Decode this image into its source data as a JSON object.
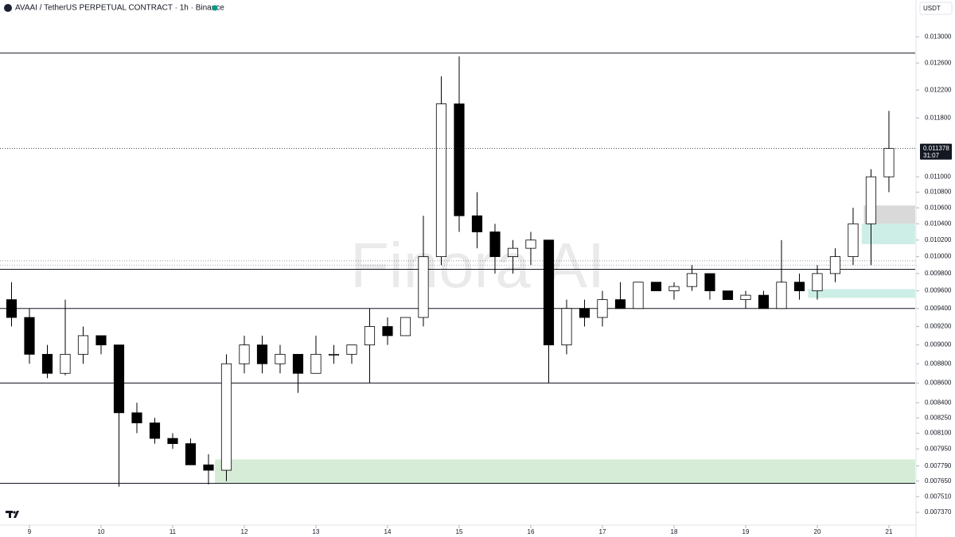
{
  "chart_data": {
    "type": "candlestick",
    "title": "AVAAI / TetherUS PERPETUAL CONTRACT · 1h · Binance",
    "currency": "USDT",
    "watermark": "Finora AI",
    "up_color": "#ffffff",
    "down_color": "#000000",
    "border_color": "#000000",
    "log_scale": true,
    "x": [
      8.75,
      9.0,
      9.25,
      9.5,
      9.75,
      10.0,
      10.25,
      10.5,
      10.75,
      11.0,
      11.25,
      11.5,
      11.75,
      12.0,
      12.25,
      12.5,
      12.75,
      13.0,
      13.25,
      13.5,
      13.75,
      14.0,
      14.25,
      14.5,
      14.75,
      15.0,
      15.25,
      15.5,
      15.75,
      16.0,
      16.25,
      16.5,
      16.75,
      17.0,
      17.25,
      17.5,
      17.75,
      18.0,
      18.25,
      18.5,
      18.75,
      19.0,
      19.25,
      19.5,
      19.75,
      20.0,
      20.25,
      20.5,
      20.75,
      21.0
    ],
    "open": [
      0.0095,
      0.0093,
      0.0089,
      0.0087,
      0.0089,
      0.0091,
      0.009,
      0.0083,
      0.0082,
      0.00805,
      0.008,
      0.0078,
      0.00775,
      0.0088,
      0.009,
      0.0088,
      0.0089,
      0.0087,
      0.0089,
      0.0089,
      0.009,
      0.0092,
      0.0091,
      0.0093,
      0.01,
      0.012,
      0.0105,
      0.0103,
      0.01,
      0.0101,
      0.0102,
      0.009,
      0.0094,
      0.0093,
      0.0095,
      0.0094,
      0.0097,
      0.0096,
      0.00965,
      0.0098,
      0.0096,
      0.0095,
      0.00955,
      0.0094,
      0.0097,
      0.0096,
      0.0098,
      0.01,
      0.0104,
      0.011
    ],
    "high": [
      0.0097,
      0.0094,
      0.009,
      0.0095,
      0.0092,
      0.0091,
      0.009,
      0.0084,
      0.00825,
      0.0081,
      0.00805,
      0.0079,
      0.0089,
      0.0091,
      0.0091,
      0.009,
      0.0089,
      0.0091,
      0.009,
      0.009,
      0.0094,
      0.0093,
      0.0093,
      0.0105,
      0.0124,
      0.0127,
      0.0108,
      0.0104,
      0.0102,
      0.0103,
      0.0102,
      0.0095,
      0.0095,
      0.0096,
      0.0097,
      0.0097,
      0.0097,
      0.0097,
      0.0099,
      0.0098,
      0.0096,
      0.0096,
      0.0096,
      0.0102,
      0.0098,
      0.0099,
      0.0101,
      0.0106,
      0.0111,
      0.0119
    ],
    "low": [
      0.0092,
      0.0088,
      0.00865,
      0.00868,
      0.0088,
      0.0089,
      0.0076,
      0.0081,
      0.008,
      0.00795,
      0.0078,
      0.00762,
      0.00765,
      0.0087,
      0.0087,
      0.0087,
      0.0085,
      0.0087,
      0.0088,
      0.0088,
      0.0086,
      0.009,
      0.0091,
      0.0092,
      0.0099,
      0.0103,
      0.0101,
      0.0098,
      0.0098,
      0.0099,
      0.0086,
      0.0089,
      0.0092,
      0.0092,
      0.0094,
      0.0094,
      0.0096,
      0.0095,
      0.0096,
      0.0095,
      0.0095,
      0.0094,
      0.0094,
      0.0094,
      0.0095,
      0.0095,
      0.0097,
      0.0099,
      0.0099,
      0.0108
    ],
    "close": [
      0.0093,
      0.0089,
      0.0087,
      0.0089,
      0.0091,
      0.009,
      0.0083,
      0.0082,
      0.00805,
      0.008,
      0.0078,
      0.00775,
      0.0088,
      0.009,
      0.0088,
      0.0089,
      0.0087,
      0.0089,
      0.0089,
      0.009,
      0.0092,
      0.0091,
      0.0093,
      0.01,
      0.012,
      0.0105,
      0.0103,
      0.01,
      0.0101,
      0.0102,
      0.009,
      0.0094,
      0.0093,
      0.0095,
      0.0094,
      0.0097,
      0.0096,
      0.00965,
      0.0098,
      0.0096,
      0.0095,
      0.00955,
      0.0094,
      0.0097,
      0.0096,
      0.0098,
      0.01,
      0.0104,
      0.011,
      0.011378
    ],
    "xlim": [
      8.589,
      21.367
    ],
    "xticks": [
      9,
      10,
      11,
      12,
      13,
      14,
      15,
      16,
      17,
      18,
      19,
      20,
      21
    ],
    "ylim": [
      0.007259,
      0.013584
    ],
    "yticks": [
      {
        "value": 0.013,
        "label": "0.013000"
      },
      {
        "value": 0.0126,
        "label": "0.012600"
      },
      {
        "value": 0.0122,
        "label": "0.012200"
      },
      {
        "value": 0.0118,
        "label": "0.011800"
      },
      {
        "value": 0.011,
        "label": "0.011000"
      },
      {
        "value": 0.0108,
        "label": "0.010800"
      },
      {
        "value": 0.0106,
        "label": "0.010600"
      },
      {
        "value": 0.0104,
        "label": "0.010400"
      },
      {
        "value": 0.0102,
        "label": "0.010200"
      },
      {
        "value": 0.01,
        "label": "0.010000"
      },
      {
        "value": 0.0098,
        "label": "0.009800"
      },
      {
        "value": 0.0096,
        "label": "0.009600"
      },
      {
        "value": 0.0094,
        "label": "0.009400"
      },
      {
        "value": 0.0092,
        "label": "0.009200"
      },
      {
        "value": 0.009,
        "label": "0.009000"
      },
      {
        "value": 0.0088,
        "label": "0.008800"
      },
      {
        "value": 0.0086,
        "label": "0.008600"
      },
      {
        "value": 0.0084,
        "label": "0.008400"
      },
      {
        "value": 0.00825,
        "label": "0.008250"
      },
      {
        "value": 0.0081,
        "label": "0.008100"
      },
      {
        "value": 0.00795,
        "label": "0.007950"
      },
      {
        "value": 0.00779,
        "label": "0.007790"
      },
      {
        "value": 0.00765,
        "label": "0.007650"
      },
      {
        "value": 0.00751,
        "label": "0.007510"
      },
      {
        "value": 0.00737,
        "label": "0.007370"
      }
    ],
    "levels": [
      0.01275,
      0.00985,
      0.0094,
      0.0086,
      0.00763
    ],
    "dotted_levels": [
      0.00995,
      0.0099
    ],
    "zones": [
      {
        "from": 11.59,
        "low": 0.00763,
        "high": 0.00785,
        "color": "#d6ecd6"
      },
      {
        "from": 20.65,
        "low": 0.0104,
        "high": 0.01063,
        "color": "#d9d9d9"
      },
      {
        "from": 20.62,
        "low": 0.01015,
        "high": 0.0104,
        "color": "#cdeee6"
      },
      {
        "from": 19.87,
        "low": 0.00952,
        "high": 0.00962,
        "color": "#cdeee6"
      }
    ],
    "last_price": {
      "value": 0.011378,
      "label": "0.011378"
    },
    "countdown": "31:07"
  }
}
